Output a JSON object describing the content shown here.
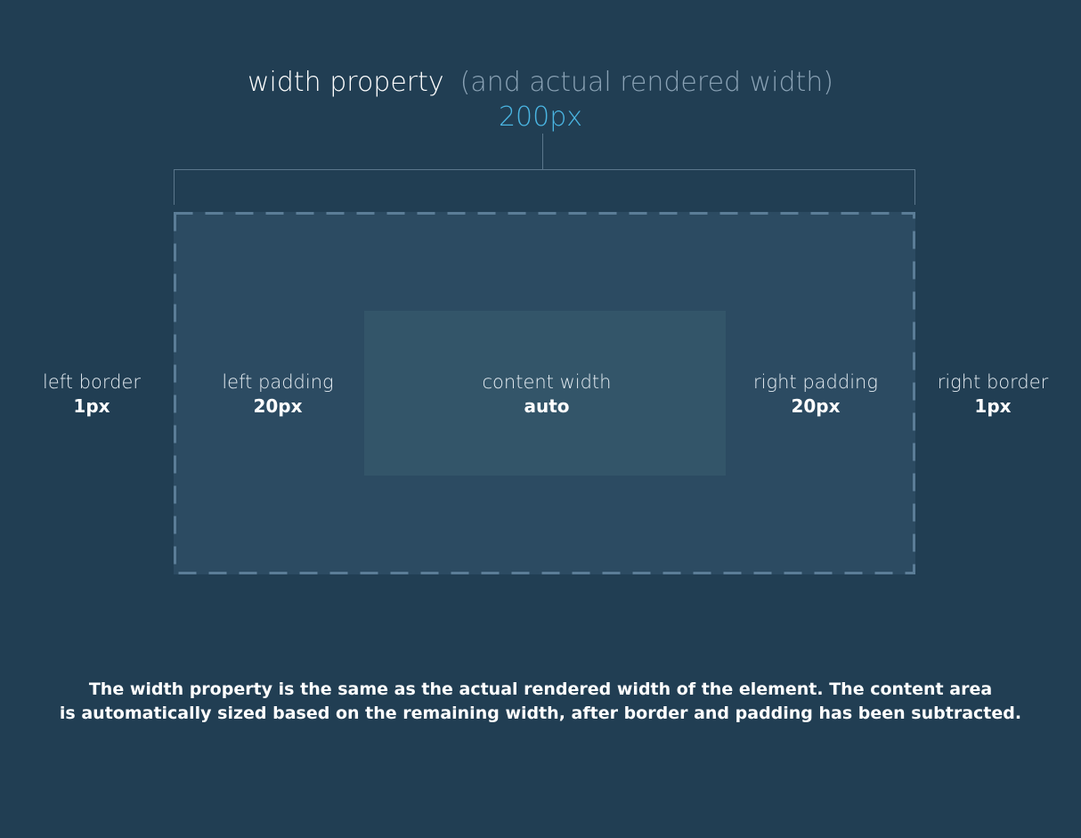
{
  "header": {
    "title": "width property",
    "subtitle": "(and actual rendered width)",
    "value": "200px"
  },
  "labels": {
    "left_border": {
      "name": "left border",
      "value": "1px"
    },
    "left_padding": {
      "name": "left padding",
      "value": "20px"
    },
    "content_width": {
      "name": "content width",
      "value": "auto"
    },
    "right_padding": {
      "name": "right padding",
      "value": "20px"
    },
    "right_border": {
      "name": "right border",
      "value": "1px"
    }
  },
  "caption": {
    "line1": "The width property is the same as the actual rendered width of the element. The content area",
    "line2": "is automatically sized based on the remaining width, after border and padding has been subtracted."
  },
  "colors": {
    "background": "#213e53",
    "box_fill": "#2c4b62",
    "content_fill": "#335569",
    "border_dash": "#5b7d97",
    "accent": "#4ab5e2",
    "subtitle": "#8aa2b5"
  }
}
